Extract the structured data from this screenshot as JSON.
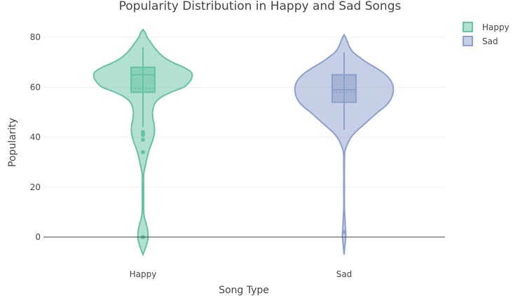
{
  "chart_data": {
    "type": "violin",
    "title": "Popularity Distribution in Happy and Sad Songs",
    "xlabel": "Song Type",
    "ylabel": "Popularity",
    "ylim": [
      -8,
      86
    ],
    "yticks": [
      0,
      20,
      40,
      60,
      80
    ],
    "grid": true,
    "legend_position": "top-right",
    "categories": [
      "Happy",
      "Sad"
    ],
    "series": [
      {
        "name": "Happy",
        "category": "Happy",
        "fill_color": "#66c2a5",
        "line_color": "#66c2a5",
        "box": {
          "lower_fence": 44,
          "q1": 58,
          "median": 65,
          "q3": 68,
          "upper_fence": 76,
          "mean": 59.5
        },
        "min": -7,
        "max": 83,
        "outliers": [
          42,
          41,
          39,
          34,
          0
        ],
        "density": [
          [
            -7,
            0
          ],
          [
            -4,
            4
          ],
          [
            -1,
            7
          ],
          [
            2,
            7
          ],
          [
            5,
            5
          ],
          [
            8,
            2
          ],
          [
            11,
            1
          ],
          [
            15,
            1
          ],
          [
            20,
            1
          ],
          [
            25,
            1
          ],
          [
            28,
            3
          ],
          [
            32,
            6
          ],
          [
            35,
            9
          ],
          [
            38,
            13
          ],
          [
            41,
            16
          ],
          [
            43,
            16.5
          ],
          [
            45,
            16
          ],
          [
            48,
            14
          ],
          [
            51,
            14
          ],
          [
            54,
            18
          ],
          [
            56,
            26
          ],
          [
            58,
            40
          ],
          [
            60,
            58
          ],
          [
            62,
            66
          ],
          [
            64,
            70
          ],
          [
            66,
            69
          ],
          [
            68,
            58
          ],
          [
            70,
            42
          ],
          [
            72,
            30
          ],
          [
            74,
            22
          ],
          [
            76,
            16
          ],
          [
            78,
            11
          ],
          [
            80,
            6
          ],
          [
            82,
            3
          ],
          [
            83,
            0
          ]
        ]
      },
      {
        "name": "Sad",
        "category": "Sad",
        "fill_color": "#8da0cb",
        "line_color": "#8da0cb",
        "box": {
          "lower_fence": 43,
          "q1": 54,
          "median": 59,
          "q3": 65,
          "upper_fence": 74,
          "mean": 58
        },
        "min": -7,
        "max": 81,
        "outliers": [
          2
        ],
        "density": [
          [
            -7,
            0
          ],
          [
            -4,
            1
          ],
          [
            -1,
            2
          ],
          [
            1,
            2.5
          ],
          [
            3,
            2
          ],
          [
            6,
            1.5
          ],
          [
            9,
            1
          ],
          [
            12,
            0.5
          ],
          [
            20,
            0.5
          ],
          [
            30,
            0.5
          ],
          [
            34,
            1
          ],
          [
            36,
            3
          ],
          [
            38,
            6
          ],
          [
            40,
            10
          ],
          [
            42,
            16
          ],
          [
            44,
            24
          ],
          [
            46,
            32
          ],
          [
            48,
            40
          ],
          [
            50,
            48
          ],
          [
            52,
            57
          ],
          [
            54,
            64
          ],
          [
            56,
            68
          ],
          [
            58,
            70
          ],
          [
            60,
            70
          ],
          [
            62,
            68
          ],
          [
            64,
            63
          ],
          [
            66,
            55
          ],
          [
            68,
            44
          ],
          [
            70,
            32
          ],
          [
            72,
            22
          ],
          [
            74,
            13
          ],
          [
            76,
            8
          ],
          [
            78,
            5
          ],
          [
            80,
            2
          ],
          [
            81,
            0
          ]
        ]
      }
    ]
  }
}
